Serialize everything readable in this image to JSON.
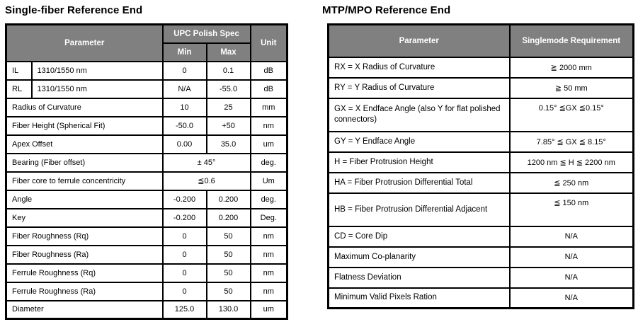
{
  "colors": {
    "header_bg": "#808080",
    "header_text": "#ffffff",
    "border": "#000000",
    "body_text": "#000000",
    "page_bg": "#ffffff"
  },
  "left": {
    "title": "Single-fiber Reference End",
    "header": {
      "parameter": "Parameter",
      "group": "UPC Polish Spec",
      "min": "Min",
      "max": "Max",
      "unit": "Unit"
    },
    "rows": [
      {
        "abbr": "IL",
        "param": "1310/1550 nm",
        "min": "0",
        "max": "0.1",
        "unit": "dB"
      },
      {
        "abbr": "RL",
        "param": "1310/1550 nm",
        "min": "N/A",
        "max": "-55.0",
        "unit": "dB"
      },
      {
        "param": "Radius of Curvature",
        "min": "10",
        "max": "25",
        "unit": "mm"
      },
      {
        "param": "Fiber Height (Spherical Fit)",
        "min": "-50.0",
        "max": "+50",
        "unit": "nm"
      },
      {
        "param": "Apex Offset",
        "min": "0.00",
        "max": "35.0",
        "unit": "um"
      },
      {
        "param": "Bearing (Fiber offset)",
        "span": "± 45°",
        "unit": "deg."
      },
      {
        "param": "Fiber core to ferrule concentricity",
        "span": "≦0.6",
        "unit": "Um"
      },
      {
        "param": "Angle",
        "min": "-0.200",
        "max": "0.200",
        "unit": "deg."
      },
      {
        "param": "Key",
        "min": "-0.200",
        "max": "0.200",
        "unit": "Deg."
      },
      {
        "param": "Fiber Roughness (Rq)",
        "min": "0",
        "max": "50",
        "unit": "nm"
      },
      {
        "param": "Fiber Roughness (Ra)",
        "min": "0",
        "max": "50",
        "unit": "nm"
      },
      {
        "param": "Ferrule Roughness (Rq)",
        "min": "0",
        "max": "50",
        "unit": "nm"
      },
      {
        "param": "Ferrule Roughness (Ra)",
        "min": "0",
        "max": "50",
        "unit": "nm"
      },
      {
        "param": "Diameter",
        "min": "125.0",
        "max": "130.0",
        "unit": "um"
      }
    ]
  },
  "right": {
    "title": "MTP/MPO Reference End",
    "header": {
      "parameter": "Parameter",
      "requirement": "Singlemode Requirement"
    },
    "rows": [
      {
        "param": "RX = X Radius of Curvature",
        "req": "≧ 2000 mm"
      },
      {
        "param": "RY = Y Radius of Curvature",
        "req": "≧ 50 mm"
      },
      {
        "param": "GX = X Endface Angle (also Y for flat polished connectors)",
        "req": "0.15° ≦GX ≦0.15°"
      },
      {
        "param": "GY = Y Endface Angle",
        "req": "7.85° ≦ GX ≦ 8.15°"
      },
      {
        "param": "H = Fiber Protrusion Height",
        "req": "1200 nm  ≦ H ≦ 2200 nm"
      },
      {
        "param": "HA = Fiber Protrusion Differential Total",
        "req": "≦ 250 nm"
      },
      {
        "param": "HB = Fiber Protrusion Differential Adjacent",
        "req": "≦ 150 nm"
      },
      {
        "param": "CD = Core Dip",
        "req": "N/A"
      },
      {
        "param": "Maximum Co-planarity",
        "req": "N/A"
      },
      {
        "param": "Flatness Deviation",
        "req": "N/A"
      },
      {
        "param": "Minimum Valid Pixels Ration",
        "req": "N/A"
      }
    ]
  }
}
